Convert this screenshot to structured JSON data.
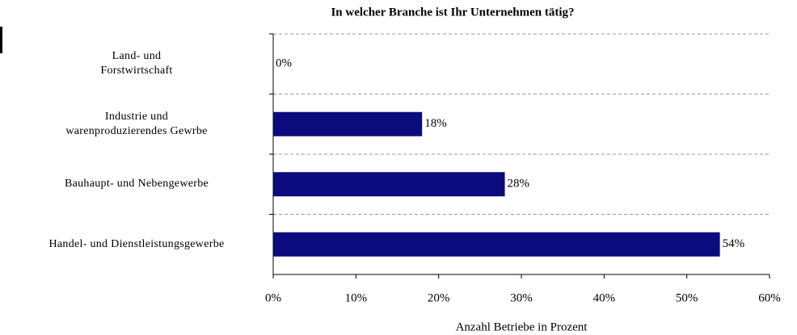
{
  "chart_data": {
    "type": "barh",
    "title": "In welcher Branche ist Ihr Unternehmen tätig?",
    "categories": [
      "Land- und\nForstwirtschaft",
      "Industrie und\nwarenproduzierendes Gewrbe",
      "Bauhaupt- und Nebengewerbe",
      "Handel- und Dienstleistungsgewerbe"
    ],
    "values": [
      0,
      18,
      28,
      54
    ],
    "value_labels": [
      "0%",
      "18%",
      "28%",
      "54%"
    ],
    "color": "#0b0b7d",
    "xlim": [
      0,
      60
    ],
    "xticks": [
      {
        "value": 0,
        "label": "0%"
      },
      {
        "value": 10,
        "label": "10%"
      },
      {
        "value": 20,
        "label": "20%"
      },
      {
        "value": 30,
        "label": "30%"
      },
      {
        "value": 40,
        "label": "40%"
      },
      {
        "value": 50,
        "label": "50%"
      },
      {
        "value": 60,
        "label": "60%"
      }
    ],
    "x_label": "Anzahl Betriebe in Prozent"
  }
}
